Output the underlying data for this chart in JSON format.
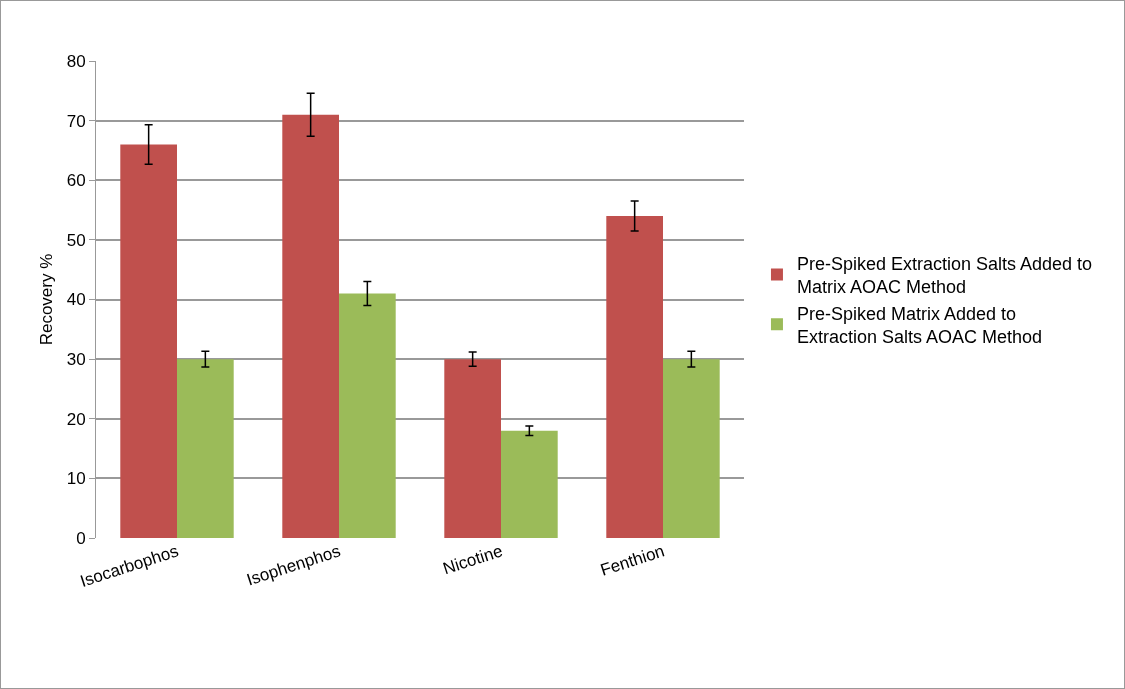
{
  "chart_data": {
    "type": "bar",
    "ylabel": "Recovery %",
    "categories": [
      "Isocarbophos",
      "Isophenphos",
      "Nicotine",
      "Fenthion"
    ],
    "series": [
      {
        "name": "Pre-Spiked Extraction Salts Added to Matrix AOAC Method",
        "color": "#c0504d",
        "values": [
          66,
          71,
          30,
          54
        ],
        "errors": [
          3.3,
          3.6,
          1.2,
          2.5
        ]
      },
      {
        "name": "Pre-Spiked Matrix Added to Extraction Salts AOAC Method",
        "color": "#9bbb59",
        "values": [
          30,
          41,
          18,
          30
        ],
        "errors": [
          1.3,
          2,
          0.8,
          1.3
        ]
      }
    ],
    "ylim": [
      0,
      80
    ],
    "yticks": [
      0,
      10,
      20,
      30,
      40,
      50,
      60,
      70,
      80
    ],
    "grid": "y",
    "legend": "right"
  }
}
